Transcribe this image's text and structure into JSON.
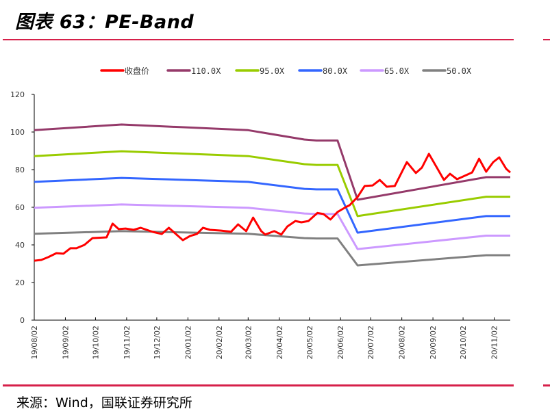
{
  "header": {
    "title": "图表 63：PE-Band"
  },
  "footer": {
    "source": "来源：Wind，国联证券研究所"
  },
  "chart_data": {
    "type": "line",
    "title": "",
    "xlabel": "",
    "ylabel": "",
    "ylim": [
      0,
      120
    ],
    "yticks": [
      0,
      20,
      40,
      60,
      80,
      100,
      120
    ],
    "xlim": [
      "2019-08-02",
      "2020-11-18"
    ],
    "xticks": [
      "2019-08-02",
      "2019-09-02",
      "2019-10-02",
      "2019-11-02",
      "2019-12-02",
      "2020-01-02",
      "2020-02-02",
      "2020-03-02",
      "2020-04-02",
      "2020-05-02",
      "2020-06-02",
      "2020-07-02",
      "2020-08-02",
      "2020-09-02",
      "2020-10-02",
      "2020-11-02"
    ],
    "xtick_labels": [
      "19/08/02",
      "19/09/02",
      "19/10/02",
      "19/11/02",
      "19/12/02",
      "20/01/02",
      "20/02/02",
      "20/03/02",
      "20/04/02",
      "20/05/02",
      "20/06/02",
      "20/07/02",
      "20/08/02",
      "20/09/02",
      "20/10/02",
      "20/11/02"
    ],
    "grid": false,
    "legend_position": "top",
    "series": [
      {
        "name": "收盘价",
        "color": "#ff0000",
        "x": [
          "2019-08-02",
          "2019-08-09",
          "2019-08-16",
          "2019-08-24",
          "2019-08-31",
          "2019-09-07",
          "2019-09-13",
          "2019-09-21",
          "2019-09-29",
          "2019-10-13",
          "2019-10-19",
          "2019-10-25",
          "2019-11-01",
          "2019-11-09",
          "2019-11-16",
          "2019-11-28",
          "2019-12-07",
          "2019-12-14",
          "2019-12-28",
          "2020-01-04",
          "2020-01-11",
          "2020-01-17",
          "2020-01-24",
          "2020-02-04",
          "2020-02-14",
          "2020-02-21",
          "2020-02-29",
          "2020-03-07",
          "2020-03-15",
          "2020-03-19",
          "2020-03-28",
          "2020-04-04",
          "2020-04-10",
          "2020-04-18",
          "2020-04-24",
          "2020-05-01",
          "2020-05-10",
          "2020-05-16",
          "2020-05-23",
          "2020-05-30",
          "2020-06-07",
          "2020-06-11",
          "2020-06-19",
          "2020-06-26",
          "2020-07-04",
          "2020-07-11",
          "2020-07-18",
          "2020-07-26",
          "2020-08-07",
          "2020-08-16",
          "2020-08-22",
          "2020-08-29",
          "2020-09-13",
          "2020-09-19",
          "2020-09-26",
          "2020-10-11",
          "2020-10-18",
          "2020-10-25",
          "2020-11-01",
          "2020-11-07",
          "2020-11-14",
          "2020-11-18"
        ],
        "values": [
          31.6,
          32.0,
          33.5,
          35.6,
          35.3,
          38.2,
          38.2,
          40.0,
          43.6,
          44.0,
          51.3,
          48.4,
          48.7,
          48.0,
          49.1,
          46.9,
          45.8,
          49.1,
          42.5,
          44.7,
          45.8,
          49.1,
          48.0,
          47.6,
          47.0,
          50.9,
          47.3,
          54.5,
          47.3,
          45.5,
          47.3,
          45.5,
          49.8,
          52.7,
          52.0,
          52.7,
          57.0,
          56.4,
          53.5,
          57.5,
          60.0,
          61.1,
          65.5,
          71.3,
          71.6,
          74.5,
          70.9,
          71.3,
          84.0,
          78.2,
          81.1,
          88.4,
          74.5,
          77.8,
          74.9,
          78.5,
          85.8,
          78.9,
          84.0,
          86.5,
          80.4,
          78.5
        ]
      },
      {
        "name": "110.0X",
        "color": "#953a6a",
        "x": [
          "2019-08-02",
          "2019-10-28",
          "2020-03-02",
          "2020-04-27",
          "2020-05-09",
          "2020-05-30",
          "2020-06-19",
          "2020-10-25",
          "2020-11-18"
        ],
        "values": [
          101.0,
          104.0,
          101.0,
          96.0,
          95.5,
          95.5,
          64.0,
          76.0,
          76.0
        ]
      },
      {
        "name": "95.0X",
        "color": "#99cc00",
        "x": [
          "2019-08-02",
          "2019-10-28",
          "2020-03-02",
          "2020-04-27",
          "2020-05-09",
          "2020-05-30",
          "2020-06-19",
          "2020-10-25",
          "2020-11-18"
        ],
        "values": [
          87.2,
          89.8,
          87.2,
          82.9,
          82.5,
          82.5,
          55.3,
          65.6,
          65.6
        ]
      },
      {
        "name": "80.0X",
        "color": "#3366ff",
        "x": [
          "2019-08-02",
          "2019-10-28",
          "2020-03-02",
          "2020-04-27",
          "2020-05-09",
          "2020-05-30",
          "2020-06-19",
          "2020-10-25",
          "2020-11-18"
        ],
        "values": [
          73.5,
          75.6,
          73.5,
          69.8,
          69.5,
          69.5,
          46.5,
          55.3,
          55.3
        ]
      },
      {
        "name": "65.0X",
        "color": "#cc99ff",
        "x": [
          "2019-08-02",
          "2019-10-28",
          "2020-03-02",
          "2020-04-27",
          "2020-05-09",
          "2020-05-30",
          "2020-06-19",
          "2020-10-25",
          "2020-11-18"
        ],
        "values": [
          59.7,
          61.5,
          59.7,
          56.7,
          56.4,
          56.4,
          37.8,
          44.9,
          44.9
        ]
      },
      {
        "name": "50.0X",
        "color": "#808080",
        "x": [
          "2019-08-02",
          "2019-10-28",
          "2020-03-02",
          "2020-04-27",
          "2020-05-09",
          "2020-05-30",
          "2020-06-19",
          "2020-10-25",
          "2020-11-18"
        ],
        "values": [
          45.9,
          47.3,
          45.9,
          43.6,
          43.4,
          43.4,
          29.1,
          34.5,
          34.5
        ]
      }
    ]
  }
}
